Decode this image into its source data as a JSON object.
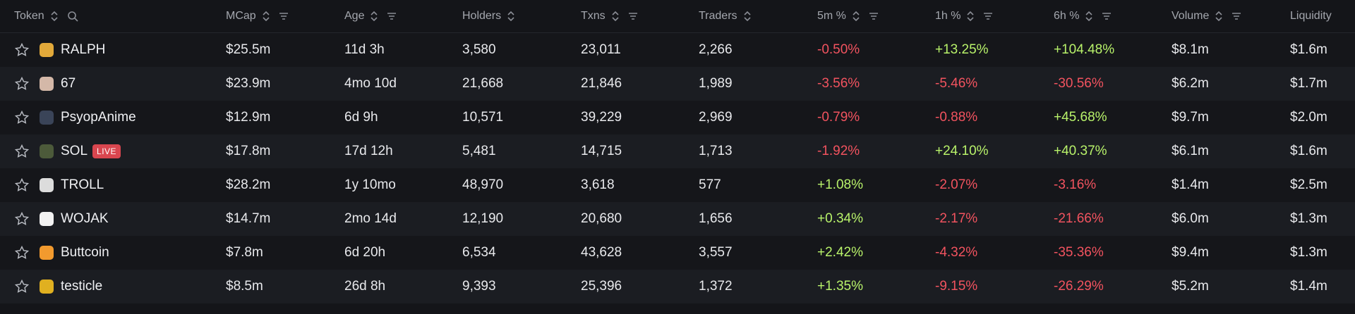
{
  "colors": {
    "positive": "#b8f26a",
    "negative": "#f2535f",
    "live": "#d9464f"
  },
  "header": {
    "token": "Token",
    "mcap": "MCap",
    "age": "Age",
    "holders": "Holders",
    "txns": "Txns",
    "traders": "Traders",
    "m5": "5m %",
    "h1": "1h %",
    "h6": "6h %",
    "volume": "Volume",
    "liquidity": "Liquidity"
  },
  "rows": [
    {
      "name": "RALPH",
      "icon": "ralph-avatar-icon",
      "icon_color": "#e2a93a",
      "live": "",
      "mcap": "$25.5m",
      "age": "11d 3h",
      "holders": "3,580",
      "txns": "23,011",
      "traders": "2,266",
      "m5": "-0.50%",
      "h1": "+13.25%",
      "h6": "+104.48%",
      "volume": "$8.1m",
      "liquidity": "$1.6m"
    },
    {
      "name": "67",
      "icon": "67-avatar-icon",
      "icon_color": "#d4b8a8",
      "live": "",
      "mcap": "$23.9m",
      "age": "4mo 10d",
      "holders": "21,668",
      "txns": "21,846",
      "traders": "1,989",
      "m5": "-3.56%",
      "h1": "-5.46%",
      "h6": "-30.56%",
      "volume": "$6.2m",
      "liquidity": "$1.7m"
    },
    {
      "name": "PsyopAnime",
      "icon": "psyopanime-avatar-icon",
      "icon_color": "#3a4458",
      "live": "",
      "mcap": "$12.9m",
      "age": "6d 9h",
      "holders": "10,571",
      "txns": "39,229",
      "traders": "2,969",
      "m5": "-0.79%",
      "h1": "-0.88%",
      "h6": "+45.68%",
      "volume": "$9.7m",
      "liquidity": "$2.0m"
    },
    {
      "name": "SOL",
      "icon": "sol-avatar-icon",
      "icon_color": "#4c5a3a",
      "live": "LIVE",
      "mcap": "$17.8m",
      "age": "17d 12h",
      "holders": "5,481",
      "txns": "14,715",
      "traders": "1,713",
      "m5": "-1.92%",
      "h1": "+24.10%",
      "h6": "+40.37%",
      "volume": "$6.1m",
      "liquidity": "$1.6m"
    },
    {
      "name": "TROLL",
      "icon": "troll-face-icon",
      "icon_color": "#dcdcdc",
      "live": "",
      "mcap": "$28.2m",
      "age": "1y 10mo",
      "holders": "48,970",
      "txns": "3,618",
      "traders": "577",
      "m5": "+1.08%",
      "h1": "-2.07%",
      "h6": "-3.16%",
      "volume": "$1.4m",
      "liquidity": "$2.5m"
    },
    {
      "name": "WOJAK",
      "icon": "wojak-avatar-icon",
      "icon_color": "#f2f2f2",
      "live": "",
      "mcap": "$14.7m",
      "age": "2mo 14d",
      "holders": "12,190",
      "txns": "20,680",
      "traders": "1,656",
      "m5": "+0.34%",
      "h1": "-2.17%",
      "h6": "-21.66%",
      "volume": "$6.0m",
      "liquidity": "$1.3m"
    },
    {
      "name": "Buttcoin",
      "icon": "buttcoin-avatar-icon",
      "icon_color": "#f29a2e",
      "live": "",
      "mcap": "$7.8m",
      "age": "6d 20h",
      "holders": "6,534",
      "txns": "43,628",
      "traders": "3,557",
      "m5": "+2.42%",
      "h1": "-4.32%",
      "h6": "-35.36%",
      "volume": "$9.4m",
      "liquidity": "$1.3m"
    },
    {
      "name": "testicle",
      "icon": "testicle-avatar-icon",
      "icon_color": "#e0b020",
      "live": "",
      "mcap": "$8.5m",
      "age": "26d 8h",
      "holders": "9,393",
      "txns": "25,396",
      "traders": "1,372",
      "m5": "+1.35%",
      "h1": "-9.15%",
      "h6": "-26.29%",
      "volume": "$5.2m",
      "liquidity": "$1.4m"
    }
  ]
}
